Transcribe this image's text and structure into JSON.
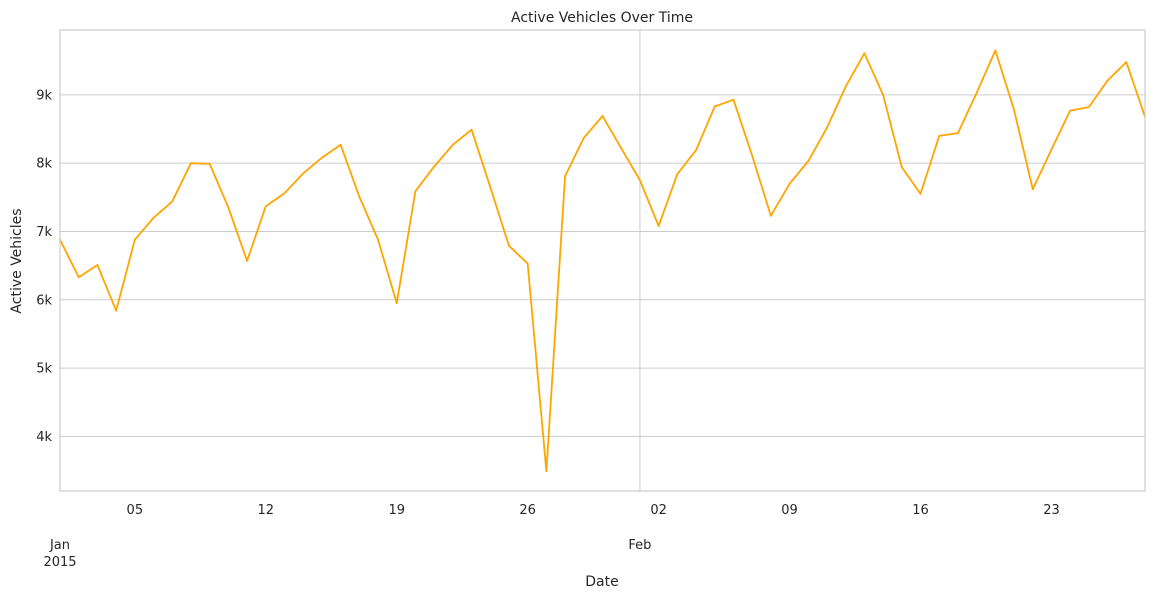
{
  "chart_data": {
    "type": "line",
    "title": "Active Vehicles Over Time",
    "xlabel": "Date",
    "ylabel": "Active Vehicles",
    "grid": true,
    "legend": "none",
    "x_range": [
      "2015-01-01",
      "2015-02-28"
    ],
    "ylim": [
      3200,
      9950
    ],
    "y_ticks": [
      {
        "value": 4000,
        "label": "4k"
      },
      {
        "value": 5000,
        "label": "5k"
      },
      {
        "value": 6000,
        "label": "6k"
      },
      {
        "value": 7000,
        "label": "7k"
      },
      {
        "value": 8000,
        "label": "8k"
      },
      {
        "value": 9000,
        "label": "9k"
      }
    ],
    "x_ticks": [
      {
        "date": "2015-01-05",
        "label": "05"
      },
      {
        "date": "2015-01-12",
        "label": "12"
      },
      {
        "date": "2015-01-19",
        "label": "19"
      },
      {
        "date": "2015-01-26",
        "label": "26"
      },
      {
        "date": "2015-02-02",
        "label": "02"
      },
      {
        "date": "2015-02-09",
        "label": "09"
      },
      {
        "date": "2015-02-16",
        "label": "16"
      },
      {
        "date": "2015-02-23",
        "label": "23"
      }
    ],
    "x_major_ticks": [
      {
        "date": "2015-01-01",
        "label": "Jan",
        "sublabel": "2015"
      },
      {
        "date": "2015-02-01",
        "label": "Feb",
        "sublabel": ""
      }
    ],
    "series": [
      {
        "color": "#FFA500",
        "x": [
          "2015-01-01",
          "2015-01-02",
          "2015-01-03",
          "2015-01-04",
          "2015-01-05",
          "2015-01-06",
          "2015-01-07",
          "2015-01-08",
          "2015-01-09",
          "2015-01-10",
          "2015-01-11",
          "2015-01-12",
          "2015-01-13",
          "2015-01-14",
          "2015-01-15",
          "2015-01-16",
          "2015-01-17",
          "2015-01-18",
          "2015-01-19",
          "2015-01-20",
          "2015-01-21",
          "2015-01-22",
          "2015-01-23",
          "2015-01-24",
          "2015-01-25",
          "2015-01-26",
          "2015-01-27",
          "2015-01-28",
          "2015-01-29",
          "2015-01-30",
          "2015-01-31",
          "2015-02-01",
          "2015-02-02",
          "2015-02-03",
          "2015-02-04",
          "2015-02-05",
          "2015-02-06",
          "2015-02-07",
          "2015-02-08",
          "2015-02-09",
          "2015-02-10",
          "2015-02-11",
          "2015-02-12",
          "2015-02-13",
          "2015-02-14",
          "2015-02-15",
          "2015-02-16",
          "2015-02-17",
          "2015-02-18",
          "2015-02-19",
          "2015-02-20",
          "2015-02-21",
          "2015-02-22",
          "2015-02-23",
          "2015-02-24",
          "2015-02-25",
          "2015-02-26",
          "2015-02-27",
          "2015-02-28"
        ],
        "values": [
          6880,
          6330,
          6510,
          5840,
          6880,
          7200,
          7440,
          8000,
          7990,
          7350,
          6570,
          7370,
          7560,
          7850,
          8080,
          8270,
          7510,
          6880,
          5950,
          7590,
          7950,
          8270,
          8490,
          7650,
          6790,
          6530,
          3490,
          7810,
          8370,
          8690,
          8220,
          7750,
          7080,
          7840,
          8190,
          8830,
          8930,
          8110,
          7230,
          7700,
          8030,
          8520,
          9120,
          9610,
          9000,
          7940,
          7550,
          8400,
          8440,
          9030,
          9650,
          8780,
          7620,
          8200,
          8770,
          8820,
          9210,
          9480,
          8680
        ]
      }
    ]
  }
}
